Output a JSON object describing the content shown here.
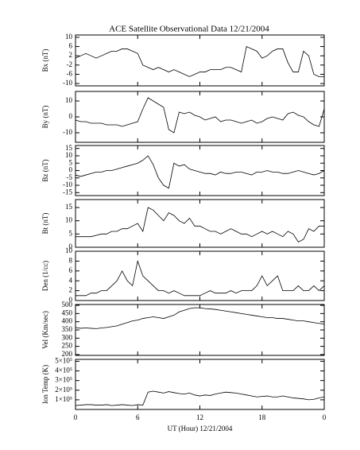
{
  "chart_data": [
    {
      "type": "line",
      "title": "ACE Satellite Observational Data   12/21/2004",
      "ylabel": "Bx (nT)",
      "xlim": [
        0,
        24
      ],
      "ylim": [
        -11,
        11
      ],
      "yticks": [
        10,
        6,
        2,
        -2,
        -6,
        -10
      ],
      "x": [
        0,
        0.5,
        1,
        1.5,
        2,
        2.5,
        3,
        3.5,
        4,
        4.5,
        5,
        5.5,
        6,
        6.5,
        7,
        7.5,
        8,
        8.5,
        9,
        9.5,
        10,
        10.5,
        11,
        11.5,
        12,
        12.5,
        13,
        13.5,
        14,
        14.5,
        15,
        15.5,
        16,
        16.5,
        17,
        17.5,
        18,
        18.5,
        19,
        19.5,
        20,
        20.5,
        21,
        21.5,
        22,
        22.5,
        23,
        23.5,
        24
      ],
      "series": [
        {
          "color": "#000000",
          "values": [
            1,
            2,
            3,
            2,
            1,
            2,
            3,
            4,
            4,
            5,
            5,
            4,
            3,
            -2,
            -3,
            -4,
            -3,
            -4,
            -5,
            -4,
            -5,
            -6,
            -7,
            -6,
            -5,
            -5,
            -4,
            -4,
            -4,
            -3,
            -3,
            -4,
            -5,
            6,
            5,
            4,
            1,
            2,
            4,
            5,
            5,
            -1,
            -5,
            -5,
            4,
            2,
            -6,
            -7,
            -7
          ]
        }
      ]
    },
    {
      "type": "line",
      "ylabel": "By (nT)",
      "xlim": [
        0,
        24
      ],
      "ylim": [
        -16,
        16
      ],
      "yticks": [
        10,
        0,
        -10
      ],
      "x": [
        0,
        0.5,
        1,
        1.5,
        2,
        2.5,
        3,
        3.5,
        4,
        4.5,
        5,
        5.5,
        6,
        6.5,
        7,
        7.5,
        8,
        8.5,
        9,
        9.5,
        10,
        10.5,
        11,
        11.5,
        12,
        12.5,
        13,
        13.5,
        14,
        14.5,
        15,
        15.5,
        16,
        16.5,
        17,
        17.5,
        18,
        18.5,
        19,
        19.5,
        20,
        20.5,
        21,
        21.5,
        22,
        22.5,
        23,
        23.5,
        24
      ],
      "series": [
        {
          "color": "#000000",
          "values": [
            -2,
            -3,
            -3,
            -4,
            -4,
            -4,
            -5,
            -5,
            -5,
            -6,
            -5,
            -4,
            -3,
            5,
            12,
            10,
            8,
            6,
            -8,
            -10,
            3,
            2,
            3,
            1,
            0,
            -2,
            -1,
            0,
            -3,
            -2,
            -2,
            -3,
            -4,
            -3,
            -2,
            -4,
            -3,
            -1,
            0,
            -1,
            -2,
            2,
            3,
            1,
            0,
            -3,
            -5,
            -6,
            5
          ]
        }
      ]
    },
    {
      "type": "line",
      "ylabel": "Bz (nT)",
      "xlim": [
        0,
        24
      ],
      "ylim": [
        -17,
        17
      ],
      "yticks": [
        15,
        10,
        5,
        0,
        -5,
        -10,
        -15
      ],
      "x": [
        0,
        0.5,
        1,
        1.5,
        2,
        2.5,
        3,
        3.5,
        4,
        4.5,
        5,
        5.5,
        6,
        6.5,
        7,
        7.5,
        8,
        8.5,
        9,
        9.5,
        10,
        10.5,
        11,
        11.5,
        12,
        12.5,
        13,
        13.5,
        14,
        14.5,
        15,
        15.5,
        16,
        16.5,
        17,
        17.5,
        18,
        18.5,
        19,
        19.5,
        20,
        20.5,
        21,
        21.5,
        22,
        22.5,
        23,
        23.5,
        24
      ],
      "series": [
        {
          "color": "#000000",
          "values": [
            -3,
            -4,
            -3,
            -2,
            -1,
            -1,
            0,
            0,
            1,
            2,
            3,
            4,
            5,
            7,
            10,
            4,
            -5,
            -10,
            -12,
            5,
            3,
            4,
            1,
            0,
            -1,
            -2,
            -2,
            -3,
            -1,
            -2,
            -2,
            -1,
            -1,
            -2,
            -3,
            -1,
            -1,
            0,
            -1,
            -1,
            -2,
            -2,
            -1,
            0,
            -1,
            -2,
            -3,
            -2,
            0
          ]
        }
      ]
    },
    {
      "type": "line",
      "ylabel": "Bt (nT)",
      "xlim": [
        0,
        24
      ],
      "ylim": [
        0,
        18
      ],
      "yticks": [
        15,
        10,
        5,
        0
      ],
      "x": [
        0,
        0.5,
        1,
        1.5,
        2,
        2.5,
        3,
        3.5,
        4,
        4.5,
        5,
        5.5,
        6,
        6.5,
        7,
        7.5,
        8,
        8.5,
        9,
        9.5,
        10,
        10.5,
        11,
        11.5,
        12,
        12.5,
        13,
        13.5,
        14,
        14.5,
        15,
        15.5,
        16,
        16.5,
        17,
        17.5,
        18,
        18.5,
        19,
        19.5,
        20,
        20.5,
        21,
        21.5,
        22,
        22.5,
        23,
        23.5,
        24
      ],
      "series": [
        {
          "color": "#000000",
          "values": [
            4,
            4,
            4,
            4,
            4.5,
            5,
            5,
            6,
            6,
            7,
            7,
            8,
            9,
            6,
            15,
            14,
            12,
            10,
            13,
            12,
            10,
            9,
            11,
            8,
            8,
            7,
            6,
            6,
            5,
            6,
            7,
            6,
            5,
            5,
            4,
            5,
            6,
            5,
            6,
            5,
            4,
            6,
            5,
            2,
            3,
            7,
            6,
            8,
            8
          ]
        }
      ]
    },
    {
      "type": "line",
      "ylabel": "Den (1/cc)",
      "xlim": [
        0,
        24
      ],
      "ylim": [
        0,
        10
      ],
      "yticks": [
        10,
        8,
        6,
        4,
        2,
        0
      ],
      "x": [
        0,
        0.5,
        1,
        1.5,
        2,
        2.5,
        3,
        3.5,
        4,
        4.5,
        5,
        5.5,
        6,
        6.5,
        7,
        7.5,
        8,
        8.5,
        9,
        9.5,
        10,
        10.5,
        11,
        11.5,
        12,
        12.5,
        13,
        13.5,
        14,
        14.5,
        15,
        15.5,
        16,
        16.5,
        17,
        17.5,
        18,
        18.5,
        19,
        19.5,
        20,
        20.5,
        21,
        21.5,
        22,
        22.5,
        23,
        23.5,
        24
      ],
      "series": [
        {
          "color": "#000000",
          "values": [
            1,
            1,
            1,
            1.5,
            1.5,
            2,
            2,
            3,
            4,
            6,
            4,
            3,
            8,
            5,
            4,
            3,
            2,
            2,
            1.5,
            2,
            1.5,
            1,
            1,
            1,
            1,
            1.5,
            2,
            1.5,
            1.5,
            1.5,
            2,
            1.5,
            2,
            2,
            2,
            3,
            5,
            3,
            4,
            5,
            2,
            2,
            2,
            3,
            2,
            2,
            3,
            2,
            3
          ]
        }
      ]
    },
    {
      "type": "line",
      "ylabel": "Vel (Km/sec)",
      "xlim": [
        0,
        24
      ],
      "ylim": [
        195,
        505
      ],
      "yticks": [
        500,
        450,
        400,
        350,
        300,
        250,
        200
      ],
      "x": [
        0,
        0.5,
        1,
        1.5,
        2,
        2.5,
        3,
        3.5,
        4,
        4.5,
        5,
        5.5,
        6,
        6.5,
        7,
        7.5,
        8,
        8.5,
        9,
        9.5,
        10,
        10.5,
        11,
        11.5,
        12,
        12.5,
        13,
        13.5,
        14,
        14.5,
        15,
        15.5,
        16,
        16.5,
        17,
        17.5,
        18,
        18.5,
        19,
        19.5,
        20,
        20.5,
        21,
        21.5,
        22,
        22.5,
        23,
        23.5,
        24
      ],
      "series": [
        {
          "color": "#000000",
          "values": [
            365,
            360,
            362,
            360,
            358,
            362,
            365,
            370,
            375,
            385,
            395,
            405,
            410,
            420,
            425,
            430,
            425,
            420,
            430,
            440,
            460,
            470,
            480,
            485,
            485,
            480,
            478,
            475,
            470,
            465,
            460,
            455,
            450,
            445,
            440,
            435,
            430,
            425,
            425,
            420,
            420,
            415,
            410,
            405,
            405,
            400,
            395,
            390,
            385
          ]
        }
      ]
    },
    {
      "type": "line",
      "ylabel": "Ion Temp (K)",
      "xlabel": "UT (Hour)  12/21/2004",
      "xlim": [
        0,
        24
      ],
      "ylim": [
        0,
        520000
      ],
      "xticks": [
        0,
        6,
        12,
        18,
        {
          "value": 24,
          "label": "0"
        }
      ],
      "yticks": [
        {
          "value": 500000,
          "label": "5×10⁵"
        },
        {
          "value": 400000,
          "label": "4×10⁵"
        },
        {
          "value": 300000,
          "label": "3×10⁵"
        },
        {
          "value": 200000,
          "label": "2×10⁵"
        },
        {
          "value": 100000,
          "label": "1×10⁵"
        }
      ],
      "x": [
        0,
        0.5,
        1,
        1.5,
        2,
        2.5,
        3,
        3.5,
        4,
        4.5,
        5,
        5.5,
        6,
        6.5,
        7,
        7.5,
        8,
        8.5,
        9,
        9.5,
        10,
        10.5,
        11,
        11.5,
        12,
        12.5,
        13,
        13.5,
        14,
        14.5,
        15,
        15.5,
        16,
        16.5,
        17,
        17.5,
        18,
        18.5,
        19,
        19.5,
        20,
        20.5,
        21,
        21.5,
        22,
        22.5,
        23,
        23.5,
        24
      ],
      "series": [
        {
          "color": "#000000",
          "values": [
            40000,
            45000,
            50000,
            50000,
            45000,
            45000,
            50000,
            40000,
            45000,
            50000,
            45000,
            40000,
            50000,
            45000,
            180000,
            190000,
            180000,
            170000,
            185000,
            175000,
            165000,
            160000,
            170000,
            150000,
            140000,
            150000,
            145000,
            160000,
            170000,
            180000,
            175000,
            170000,
            160000,
            150000,
            140000,
            130000,
            135000,
            140000,
            130000,
            130000,
            140000,
            130000,
            120000,
            115000,
            110000,
            100000,
            105000,
            120000,
            130000
          ]
        }
      ]
    }
  ]
}
